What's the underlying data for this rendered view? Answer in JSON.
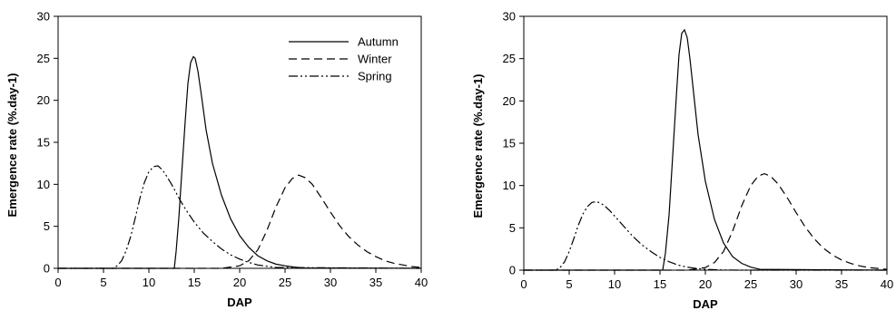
{
  "chart_data": [
    {
      "type": "line",
      "title": "",
      "xlabel": "DAP",
      "ylabel": "Emergence rate (%.day-1)",
      "xlim": [
        0,
        40
      ],
      "ylim": [
        0,
        30
      ],
      "xticks": [
        0,
        5,
        10,
        15,
        20,
        25,
        30,
        35,
        40
      ],
      "yticks": [
        0,
        5,
        10,
        15,
        20,
        25,
        30
      ],
      "grid": false,
      "legend": "top-right",
      "series": [
        {
          "name": "Autumn",
          "style": "solid",
          "x": [
            0,
            12.8,
            13.0,
            13.3,
            13.6,
            14.0,
            14.3,
            14.6,
            14.9,
            15.1,
            15.4,
            15.8,
            16.3,
            17.0,
            18.0,
            19.0,
            20.0,
            21.0,
            22.0,
            23.0,
            24.0,
            25.0,
            26.0,
            27.0,
            40
          ],
          "y": [
            0,
            0,
            2.0,
            6.0,
            11.0,
            17.5,
            22.0,
            24.5,
            25.2,
            25.0,
            23.5,
            20.5,
            16.5,
            12.5,
            8.7,
            5.9,
            3.9,
            2.5,
            1.5,
            0.9,
            0.5,
            0.3,
            0.15,
            0.05,
            0
          ]
        },
        {
          "name": "Winter",
          "style": "dashed",
          "x": [
            0,
            18.0,
            20.0,
            21.0,
            22.0,
            23.0,
            24.0,
            25.0,
            25.8,
            26.5,
            27.2,
            28.0,
            29.0,
            30.0,
            31.0,
            32.0,
            33.0,
            34.0,
            35.0,
            36.0,
            37.0,
            38.0,
            39.0,
            40.0
          ],
          "y": [
            0,
            0,
            0.3,
            0.9,
            2.2,
            4.5,
            7.3,
            9.6,
            10.7,
            11.1,
            10.8,
            10.0,
            8.4,
            6.7,
            5.1,
            3.8,
            2.8,
            2.0,
            1.4,
            0.9,
            0.6,
            0.4,
            0.2,
            0.1
          ]
        },
        {
          "name": "Spring",
          "style": "dash-dot-dot",
          "x": [
            0,
            6.0,
            6.5,
            7.0,
            7.5,
            8.0,
            8.5,
            9.0,
            9.5,
            10.0,
            10.5,
            11.0,
            11.5,
            12.0,
            12.5,
            13.0,
            13.5,
            14.0,
            15.0,
            16.0,
            17.0,
            18.0,
            19.0,
            20.0,
            21.0,
            22.0,
            24.0,
            40
          ],
          "y": [
            0,
            0,
            0.3,
            0.9,
            2.1,
            3.8,
            6.0,
            8.3,
            10.2,
            11.5,
            12.1,
            12.2,
            11.7,
            10.9,
            10.0,
            9.0,
            8.0,
            7.1,
            5.5,
            4.2,
            3.2,
            2.3,
            1.6,
            1.1,
            0.7,
            0.4,
            0.1,
            0
          ]
        }
      ]
    },
    {
      "type": "line",
      "title": "",
      "xlabel": "DAP",
      "ylabel": "Emergence rate (%.day-1)",
      "xlim": [
        0,
        40
      ],
      "ylim": [
        0,
        30
      ],
      "xticks": [
        0,
        5,
        10,
        15,
        20,
        25,
        30,
        35,
        40
      ],
      "yticks": [
        0,
        5,
        10,
        15,
        20,
        25,
        30
      ],
      "grid": false,
      "legend": "none",
      "series": [
        {
          "style": "solid",
          "x": [
            0,
            15.3,
            15.6,
            16.0,
            16.4,
            16.8,
            17.1,
            17.4,
            17.7,
            18.0,
            18.3,
            18.7,
            19.2,
            20.0,
            21.0,
            22.0,
            23.0,
            24.0,
            25.0,
            26.0,
            40
          ],
          "y": [
            0,
            0,
            2.0,
            6.5,
            13.5,
            20.5,
            25.5,
            28.0,
            28.4,
            27.5,
            25.0,
            21.0,
            16.0,
            10.5,
            6.0,
            3.2,
            1.6,
            0.8,
            0.35,
            0.1,
            0
          ]
        },
        {
          "style": "dashed",
          "x": [
            0,
            18.0,
            20.0,
            21.0,
            22.0,
            23.0,
            24.0,
            25.0,
            25.8,
            26.5,
            27.2,
            28.0,
            29.0,
            30.0,
            31.0,
            32.0,
            33.0,
            34.0,
            35.0,
            36.0,
            37.0,
            38.0,
            39.0,
            40.0
          ],
          "y": [
            0,
            0,
            0.3,
            0.9,
            2.2,
            4.6,
            7.6,
            10.0,
            11.1,
            11.4,
            11.1,
            10.2,
            8.6,
            6.8,
            5.1,
            3.7,
            2.6,
            1.8,
            1.2,
            0.8,
            0.5,
            0.3,
            0.2,
            0.1
          ]
        },
        {
          "style": "dash-dot-dot",
          "x": [
            0,
            3.5,
            4.0,
            4.5,
            5.0,
            5.5,
            6.0,
            6.5,
            7.0,
            7.5,
            8.0,
            8.5,
            9.0,
            9.5,
            10.0,
            11.0,
            12.0,
            13.0,
            14.0,
            15.0,
            16.0,
            17.0,
            18.0,
            19.0,
            20.0,
            22.0,
            24.0,
            40
          ],
          "y": [
            0,
            0,
            0.3,
            1.0,
            2.2,
            3.7,
            5.3,
            6.6,
            7.5,
            8.0,
            8.1,
            7.9,
            7.5,
            7.0,
            6.4,
            5.2,
            4.0,
            3.0,
            2.2,
            1.5,
            1.0,
            0.6,
            0.35,
            0.2,
            0.1,
            0.02,
            0,
            0
          ]
        }
      ]
    }
  ]
}
